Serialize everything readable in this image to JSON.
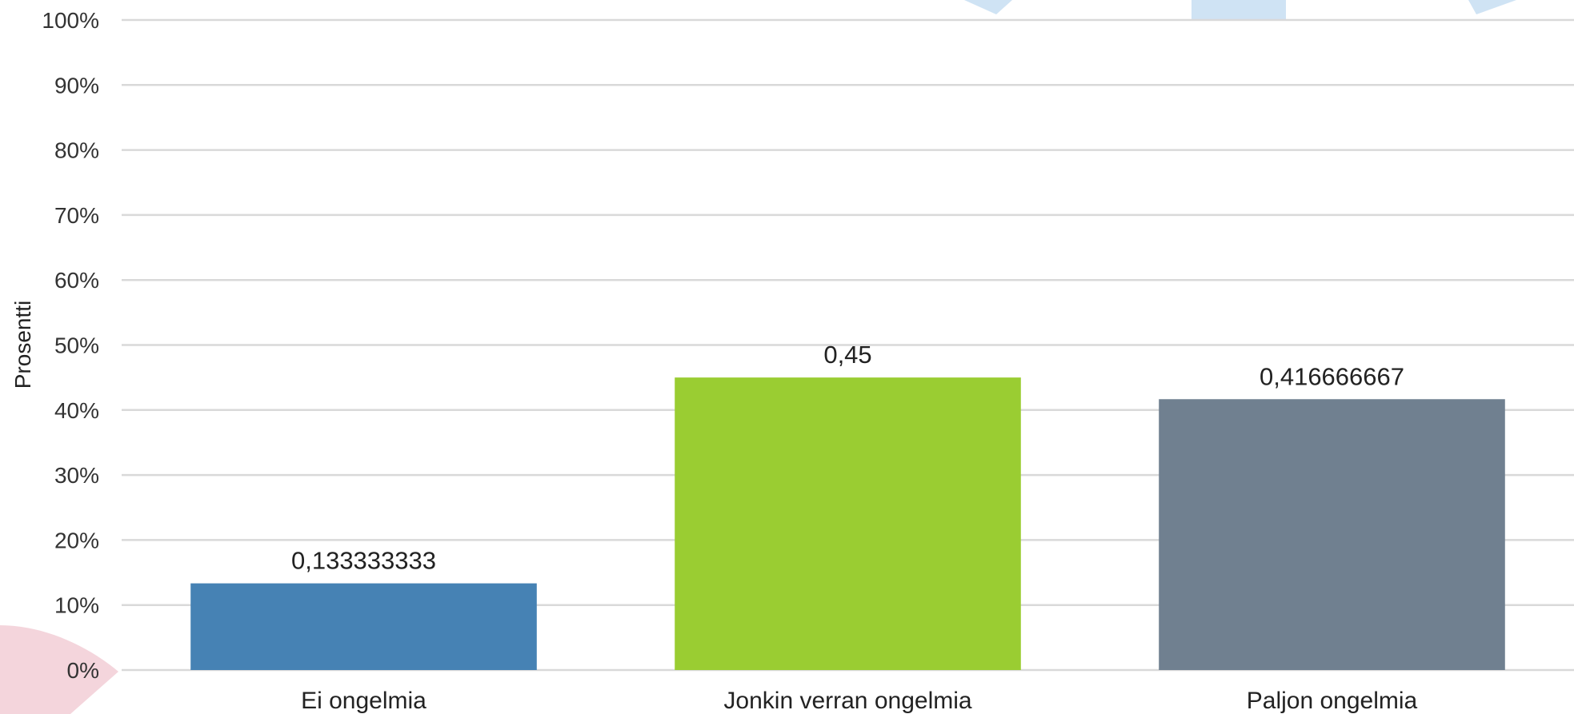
{
  "chart_data": {
    "type": "bar",
    "categories": [
      "Ei ongelmia",
      "Jonkin verran ongelmia",
      "Paljon ongelmia"
    ],
    "values": [
      0.133333333,
      0.45,
      0.416666667
    ],
    "data_labels": [
      "0,133333333",
      "0,45",
      "0,416666667"
    ],
    "bar_colors": [
      "#4682B4",
      "#9ACD32",
      "#708090"
    ],
    "title": "",
    "xlabel": "",
    "ylabel": "Prosentti",
    "ylim": [
      0,
      1
    ],
    "y_ticks": [
      0,
      0.1,
      0.2,
      0.3,
      0.4,
      0.5,
      0.6,
      0.7,
      0.8,
      0.9,
      1.0
    ],
    "y_tick_labels": [
      "0%",
      "10%",
      "20%",
      "30%",
      "40%",
      "50%",
      "60%",
      "70%",
      "80%",
      "90%",
      "100%"
    ],
    "grid": true,
    "legend": "none"
  }
}
